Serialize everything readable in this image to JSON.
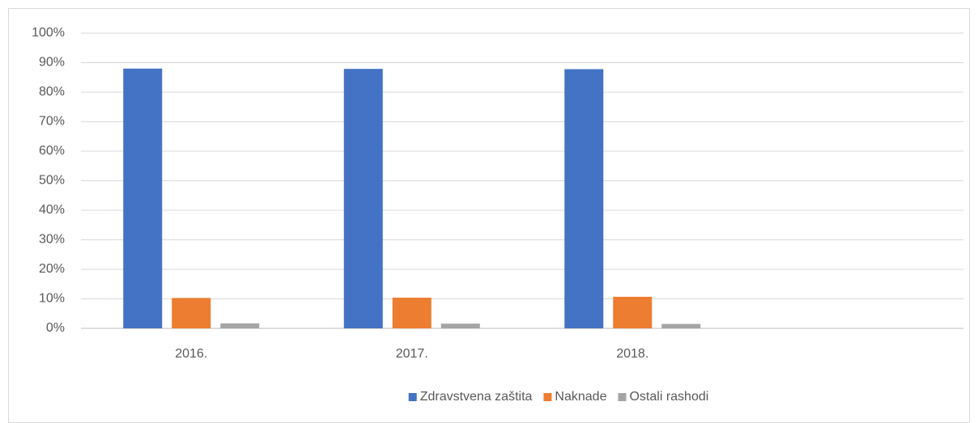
{
  "chart_data": {
    "type": "bar",
    "categories": [
      "2016.",
      "2017.",
      "2018.",
      null
    ],
    "series": [
      {
        "name": "Zdravstvena zaštita",
        "color": "#4472c4",
        "values": [
          88,
          87.9,
          87.8,
          null
        ]
      },
      {
        "name": "Naknade",
        "color": "#ed7d31",
        "values": [
          10.3,
          10.4,
          10.7,
          null
        ]
      },
      {
        "name": "Ostali rashodi",
        "color": "#a5a5a5",
        "values": [
          1.7,
          1.6,
          1.5,
          null
        ]
      }
    ],
    "ylim": [
      0,
      100
    ],
    "yticks": [
      {
        "value": 0,
        "label": "0%"
      },
      {
        "value": 10,
        "label": "10%"
      },
      {
        "value": 20,
        "label": "20%"
      },
      {
        "value": 30,
        "label": "30%"
      },
      {
        "value": 40,
        "label": "40%"
      },
      {
        "value": 50,
        "label": "50%"
      },
      {
        "value": 60,
        "label": "60%"
      },
      {
        "value": 70,
        "label": "70%"
      },
      {
        "value": 80,
        "label": "80%"
      },
      {
        "value": 90,
        "label": "90%"
      },
      {
        "value": 100,
        "label": "100%"
      }
    ],
    "grid": true,
    "legend": "bottom"
  }
}
